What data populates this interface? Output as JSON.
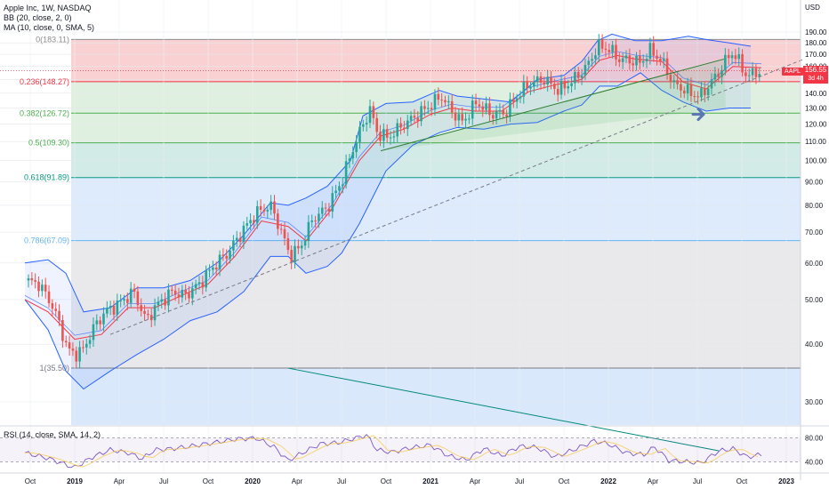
{
  "header": {
    "title": "Apple Inc, 1W, NASDAQ",
    "bb_label": "BB (20, close, 2, 0)",
    "ma_label": "MA (10, close, 0, SMA, 5)",
    "rsi_label": "RSI (14, close, SMA, 14, 2)",
    "currency": "USD"
  },
  "price_tag": {
    "symbol": "AAPL",
    "price": "156.55",
    "countdown": "3d 4h"
  },
  "colors": {
    "up": "#26a69a",
    "down": "#ef5350",
    "bb": "#2962ff",
    "ma": "#f23645",
    "fib_red": "#f8c6c8",
    "fib_green": "#d7ecd9",
    "fib_teal": "#c8e6e0",
    "fib_blue": "#d5e6fb",
    "fib_gray": "#e4e4e6",
    "rsi": "#7e57c2",
    "arrow": "#5b76b5"
  },
  "annotations": [
    "right-arrow-icon",
    "trend-channel",
    "fib-retracement"
  ],
  "chart_data": {
    "type": "candlestick",
    "y_axis_scale": "log",
    "ylim": [
      25,
      195
    ],
    "y_ticks": [
      "190.00",
      "180.00",
      "170.00",
      "160.00",
      "150.00",
      "140.00",
      "130.00",
      "120.00",
      "110.00",
      "100.00",
      "90.00",
      "80.00",
      "70.00",
      "60.00",
      "50.00",
      "40.00",
      "30.00"
    ],
    "x_ticks": [
      "Oct",
      "2019",
      "Apr",
      "Jul",
      "Oct",
      "2020",
      "Apr",
      "Jul",
      "Oct",
      "2021",
      "Apr",
      "Jul",
      "Oct",
      "2022",
      "Apr",
      "Jul",
      "Oct",
      "2023"
    ],
    "fib_levels": [
      {
        "label": "0(183.11)",
        "value": 183.11
      },
      {
        "label": "0.236(148.27)",
        "value": 148.27
      },
      {
        "label": "0.382(126.72)",
        "value": 126.72
      },
      {
        "label": "0.5(109.30)",
        "value": 109.3
      },
      {
        "label": "0.618(91.89)",
        "value": 91.89
      },
      {
        "label": "0.786(67.09)",
        "value": 67.09
      },
      {
        "label": "1(35.50)",
        "value": 35.5
      }
    ],
    "close_series": [
      [
        2018.72,
        55
      ],
      [
        2018.8,
        54
      ],
      [
        2018.88,
        48
      ],
      [
        2018.96,
        39
      ],
      [
        2019.0,
        38
      ],
      [
        2019.05,
        39
      ],
      [
        2019.1,
        43
      ],
      [
        2019.17,
        47
      ],
      [
        2019.25,
        49
      ],
      [
        2019.33,
        52
      ],
      [
        2019.4,
        45
      ],
      [
        2019.47,
        49
      ],
      [
        2019.55,
        52
      ],
      [
        2019.62,
        51
      ],
      [
        2019.7,
        54
      ],
      [
        2019.78,
        59
      ],
      [
        2019.86,
        63
      ],
      [
        2019.94,
        70
      ],
      [
        2020.02,
        77
      ],
      [
        2020.1,
        80
      ],
      [
        2020.15,
        72
      ],
      [
        2020.21,
        62
      ],
      [
        2020.27,
        65
      ],
      [
        2020.34,
        75
      ],
      [
        2020.42,
        79
      ],
      [
        2020.5,
        90
      ],
      [
        2020.58,
        110
      ],
      [
        2020.66,
        129
      ],
      [
        2020.7,
        115
      ],
      [
        2020.76,
        112
      ],
      [
        2020.84,
        119
      ],
      [
        2020.92,
        125
      ],
      [
        2021.0,
        132
      ],
      [
        2021.06,
        138
      ],
      [
        2021.12,
        128
      ],
      [
        2021.18,
        121
      ],
      [
        2021.26,
        134
      ],
      [
        2021.34,
        126
      ],
      [
        2021.42,
        127
      ],
      [
        2021.5,
        140
      ],
      [
        2021.56,
        147
      ],
      [
        2021.64,
        150
      ],
      [
        2021.72,
        142
      ],
      [
        2021.8,
        149
      ],
      [
        2021.88,
        160
      ],
      [
        2021.94,
        177
      ],
      [
        2022.0,
        175
      ],
      [
        2022.06,
        166
      ],
      [
        2022.12,
        165
      ],
      [
        2022.18,
        163
      ],
      [
        2022.24,
        174
      ],
      [
        2022.32,
        160
      ],
      [
        2022.36,
        147
      ],
      [
        2022.42,
        143
      ],
      [
        2022.46,
        140
      ],
      [
        2022.52,
        138
      ],
      [
        2022.56,
        145
      ],
      [
        2022.62,
        155
      ],
      [
        2022.66,
        165
      ],
      [
        2022.7,
        172
      ],
      [
        2022.72,
        167
      ],
      [
        2022.78,
        152
      ],
      [
        2022.82,
        155
      ],
      [
        2022.86,
        156.55
      ]
    ],
    "ma_series": [
      [
        2018.72,
        50
      ],
      [
        2018.85,
        47
      ],
      [
        2019.0,
        41
      ],
      [
        2019.15,
        42
      ],
      [
        2019.3,
        48
      ],
      [
        2019.45,
        48
      ],
      [
        2019.6,
        51
      ],
      [
        2019.75,
        54
      ],
      [
        2019.9,
        62
      ],
      [
        2020.05,
        74
      ],
      [
        2020.2,
        72
      ],
      [
        2020.3,
        67
      ],
      [
        2020.45,
        79
      ],
      [
        2020.6,
        100
      ],
      [
        2020.72,
        113
      ],
      [
        2020.85,
        117
      ],
      [
        2021.0,
        126
      ],
      [
        2021.12,
        130
      ],
      [
        2021.25,
        128
      ],
      [
        2021.4,
        128
      ],
      [
        2021.55,
        141
      ],
      [
        2021.7,
        146
      ],
      [
        2021.85,
        150
      ],
      [
        2021.95,
        165
      ],
      [
        2022.05,
        169
      ],
      [
        2022.15,
        166
      ],
      [
        2022.3,
        164
      ],
      [
        2022.42,
        148
      ],
      [
        2022.55,
        143
      ],
      [
        2022.7,
        160
      ],
      [
        2022.86,
        159
      ]
    ],
    "bb_upper": [
      [
        2018.72,
        60
      ],
      [
        2018.85,
        61
      ],
      [
        2018.95,
        57
      ],
      [
        2019.05,
        47
      ],
      [
        2019.2,
        48
      ],
      [
        2019.35,
        53
      ],
      [
        2019.5,
        53
      ],
      [
        2019.65,
        55
      ],
      [
        2019.8,
        60
      ],
      [
        2019.95,
        69
      ],
      [
        2020.1,
        81
      ],
      [
        2020.2,
        80
      ],
      [
        2020.3,
        83
      ],
      [
        2020.42,
        88
      ],
      [
        2020.55,
        100
      ],
      [
        2020.62,
        125
      ],
      [
        2020.75,
        133
      ],
      [
        2020.9,
        134
      ],
      [
        2021.05,
        142
      ],
      [
        2021.15,
        138
      ],
      [
        2021.3,
        136
      ],
      [
        2021.45,
        134
      ],
      [
        2021.6,
        150
      ],
      [
        2021.75,
        153
      ],
      [
        2021.85,
        164
      ],
      [
        2021.94,
        182
      ],
      [
        2022.02,
        188
      ],
      [
        2022.15,
        182
      ],
      [
        2022.3,
        182
      ],
      [
        2022.45,
        186
      ],
      [
        2022.55,
        183
      ],
      [
        2022.68,
        180
      ],
      [
        2022.8,
        177
      ]
    ],
    "bb_lower": [
      [
        2018.72,
        50
      ],
      [
        2018.85,
        43
      ],
      [
        2018.95,
        35
      ],
      [
        2019.05,
        32
      ],
      [
        2019.2,
        35
      ],
      [
        2019.35,
        38
      ],
      [
        2019.5,
        41
      ],
      [
        2019.65,
        45
      ],
      [
        2019.8,
        47
      ],
      [
        2019.95,
        52
      ],
      [
        2020.1,
        62
      ],
      [
        2020.2,
        62
      ],
      [
        2020.3,
        57
      ],
      [
        2020.42,
        59
      ],
      [
        2020.5,
        63
      ],
      [
        2020.6,
        73
      ],
      [
        2020.75,
        95
      ],
      [
        2020.9,
        108
      ],
      [
        2021.05,
        115
      ],
      [
        2021.15,
        118
      ],
      [
        2021.3,
        117
      ],
      [
        2021.45,
        120
      ],
      [
        2021.6,
        121
      ],
      [
        2021.75,
        128
      ],
      [
        2021.85,
        132
      ],
      [
        2021.95,
        145
      ],
      [
        2022.05,
        145
      ],
      [
        2022.18,
        155
      ],
      [
        2022.3,
        142
      ],
      [
        2022.42,
        134
      ],
      [
        2022.55,
        128
      ],
      [
        2022.68,
        130
      ],
      [
        2022.8,
        130
      ]
    ],
    "rsi_series": [
      [
        2018.72,
        55
      ],
      [
        2018.85,
        46
      ],
      [
        2018.95,
        35
      ],
      [
        2019.0,
        30
      ],
      [
        2019.1,
        48
      ],
      [
        2019.2,
        60
      ],
      [
        2019.3,
        55
      ],
      [
        2019.38,
        45
      ],
      [
        2019.45,
        60
      ],
      [
        2019.55,
        62
      ],
      [
        2019.65,
        66
      ],
      [
        2019.78,
        72
      ],
      [
        2019.9,
        78
      ],
      [
        2020.02,
        80
      ],
      [
        2020.12,
        65
      ],
      [
        2020.2,
        42
      ],
      [
        2020.28,
        55
      ],
      [
        2020.38,
        70
      ],
      [
        2020.48,
        72
      ],
      [
        2020.58,
        80
      ],
      [
        2020.64,
        85
      ],
      [
        2020.7,
        60
      ],
      [
        2020.78,
        56
      ],
      [
        2020.88,
        63
      ],
      [
        2021.0,
        68
      ],
      [
        2021.1,
        50
      ],
      [
        2021.2,
        43
      ],
      [
        2021.3,
        62
      ],
      [
        2021.4,
        50
      ],
      [
        2021.5,
        66
      ],
      [
        2021.6,
        64
      ],
      [
        2021.7,
        48
      ],
      [
        2021.82,
        62
      ],
      [
        2021.92,
        75
      ],
      [
        2022.0,
        70
      ],
      [
        2022.1,
        55
      ],
      [
        2022.2,
        52
      ],
      [
        2022.26,
        65
      ],
      [
        2022.34,
        42
      ],
      [
        2022.44,
        40
      ],
      [
        2022.52,
        38
      ],
      [
        2022.62,
        58
      ],
      [
        2022.7,
        62
      ],
      [
        2022.78,
        48
      ],
      [
        2022.86,
        52
      ]
    ]
  }
}
